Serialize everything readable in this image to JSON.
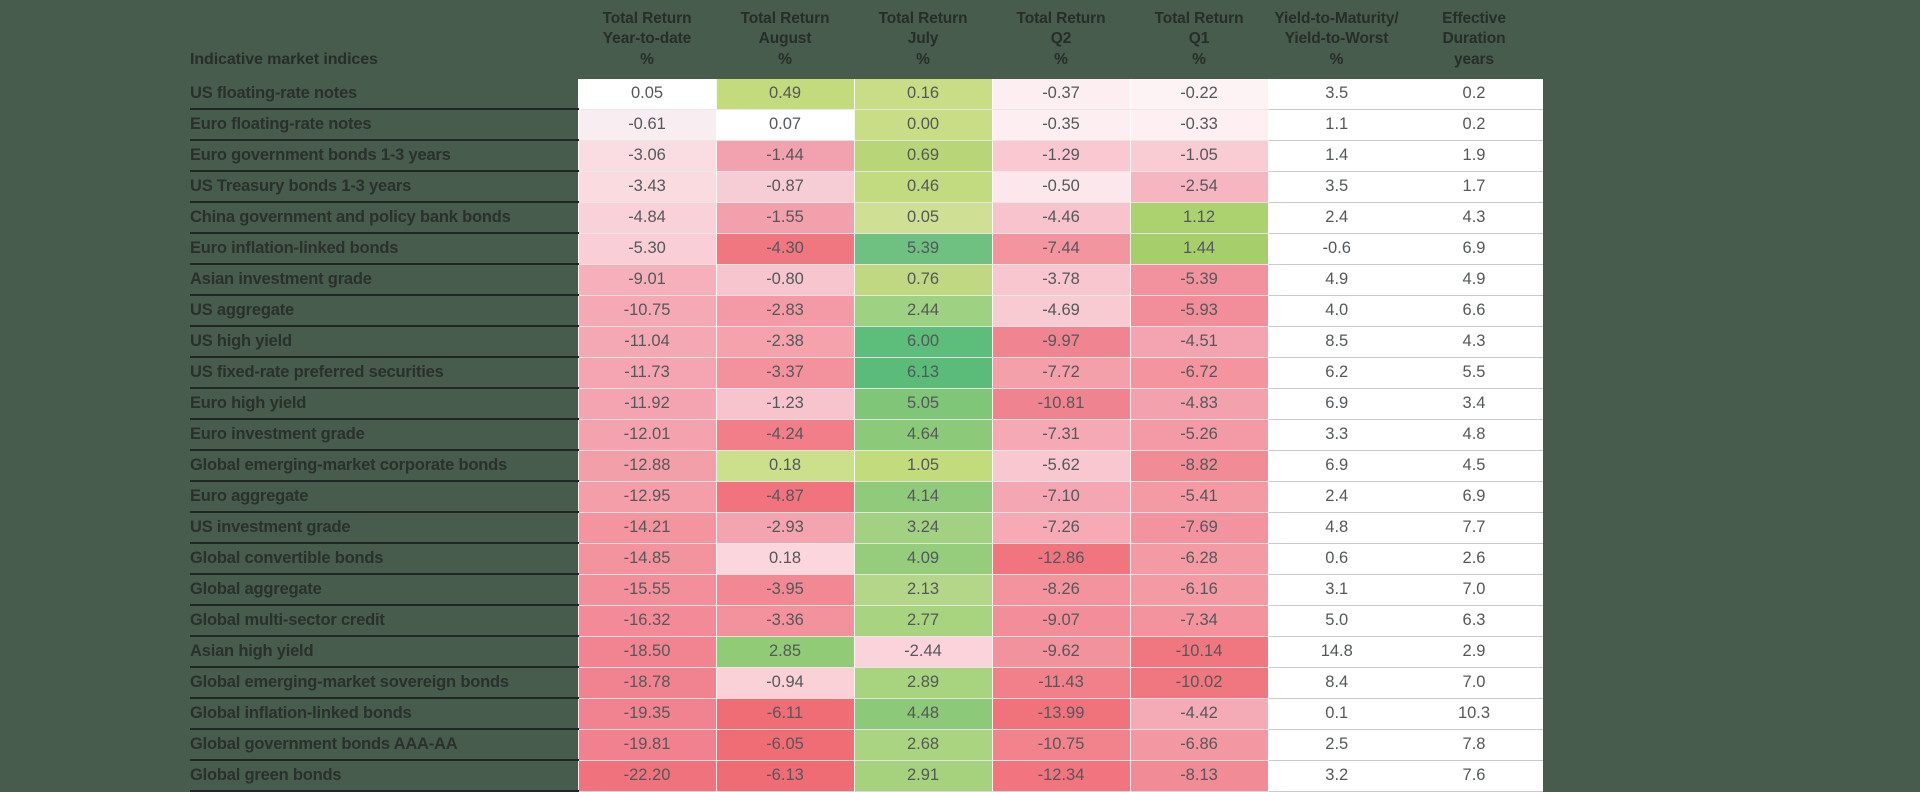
{
  "page": {
    "background_color": "#475c4d",
    "label_text_color": "#2a302c",
    "value_text_color": "#54585a",
    "row_underline_color": "#202623",
    "heat_red_max": "#f06c74",
    "heat_green_max": "#5abc78",
    "heat_neutral": "#ffffff"
  },
  "table": {
    "corner_header": "Indicative market indices",
    "column_headers": [
      "Total Return\nYear-to-date\n%",
      "Total Return\nAugust\n%",
      "Total Return\nJuly\n%",
      "Total Return\nQ2\n%",
      "Total Return\nQ1\n%",
      "Yield-to-Maturity/\nYield-to-Worst\n%",
      "Effective\nDuration\nyears"
    ]
  },
  "chart_data": {
    "type": "heatmap",
    "title": "Indicative market indices",
    "columns": [
      "Total Return Year-to-date %",
      "Total Return August %",
      "Total Return July %",
      "Total Return Q2 %",
      "Total Return Q1 %",
      "Yield-to-Maturity/Yield-to-Worst %",
      "Effective Duration years"
    ],
    "legend_position": "none",
    "grid": false,
    "rows": [
      {
        "label": "US floating-rate notes",
        "returns": [
          "0.05",
          "0.49",
          "0.16",
          "-0.37",
          "-0.22"
        ],
        "colors": [
          "#ffffff",
          "#c4db7d",
          "#c8dd85",
          "#fdeef1",
          "#fdf2f4"
        ],
        "ytm": "3.5",
        "duration": "0.2"
      },
      {
        "label": "Euro floating-rate notes",
        "returns": [
          "-0.61",
          "0.07",
          "0.00",
          "-0.35",
          "-0.33"
        ],
        "colors": [
          "#f8eef2",
          "#ffffff",
          "#c9dd86",
          "#fdeff1",
          "#fdeff2"
        ],
        "ytm": "1.1",
        "duration": "0.2"
      },
      {
        "label": "Euro government bonds 1-3 years",
        "returns": [
          "-3.06",
          "-1.44",
          "0.69",
          "-1.29",
          "-1.05"
        ],
        "colors": [
          "#fadde2",
          "#f2a2ae",
          "#b8d578",
          "#f9c8d1",
          "#f9cbd3"
        ],
        "ytm": "1.4",
        "duration": "1.9"
      },
      {
        "label": "US Treasury bonds 1-3 years",
        "returns": [
          "-3.43",
          "-0.87",
          "0.46",
          "-0.50",
          "-2.54"
        ],
        "colors": [
          "#fadbe0",
          "#f7cdd5",
          "#c2da80",
          "#fce8ec",
          "#f5b6c1"
        ],
        "ytm": "3.5",
        "duration": "1.7"
      },
      {
        "label": "China government and policy bank bonds",
        "returns": [
          "-4.84",
          "-1.55",
          "0.05",
          "-4.46",
          "1.12"
        ],
        "colors": [
          "#f9d2d9",
          "#f2a0ac",
          "#cfe094",
          "#f8c3cc",
          "#abd26f"
        ],
        "ytm": "2.4",
        "duration": "4.3"
      },
      {
        "label": "Euro inflation-linked bonds",
        "returns": [
          "-5.30",
          "-4.30",
          "5.39",
          "-7.44",
          "1.44"
        ],
        "colors": [
          "#f9ced6",
          "#f0767f",
          "#6ec180",
          "#f2959f",
          "#a6cf6b"
        ],
        "ytm": "-0.6",
        "duration": "6.9"
      },
      {
        "label": "Asian investment grade",
        "returns": [
          "-9.01",
          "-0.80",
          "0.76",
          "-3.78",
          "-5.39"
        ],
        "colors": [
          "#f5b0bb",
          "#f6c5ce",
          "#c0d882",
          "#f8c6cf",
          "#f2929e"
        ],
        "ytm": "4.9",
        "duration": "4.9"
      },
      {
        "label": "US aggregate",
        "returns": [
          "-10.75",
          "-2.83",
          "2.44",
          "-4.69",
          "-5.93"
        ],
        "colors": [
          "#f4a9b5",
          "#f49aa6",
          "#9ed182",
          "#f8cad2",
          "#f28e9a"
        ],
        "ytm": "4.0",
        "duration": "6.6"
      },
      {
        "label": "US high yield",
        "returns": [
          "-11.04",
          "-2.38",
          "6.00",
          "-9.97",
          "-4.51"
        ],
        "colors": [
          "#f4a8b4",
          "#f5a2ad",
          "#5dbd7a",
          "#f08490",
          "#f4a4b0"
        ],
        "ytm": "8.5",
        "duration": "4.3"
      },
      {
        "label": "US fixed-rate preferred securities",
        "returns": [
          "-11.73",
          "-3.37",
          "6.13",
          "-7.72",
          "-6.72"
        ],
        "colors": [
          "#f4a5b1",
          "#f3919d",
          "#5abc78",
          "#f3a0ab",
          "#f3949f"
        ],
        "ytm": "6.2",
        "duration": "5.5"
      },
      {
        "label": "Euro high yield",
        "returns": [
          "-11.92",
          "-1.23",
          "5.05",
          "-10.81",
          "-4.83"
        ],
        "colors": [
          "#f4a4b0",
          "#f7c4cd",
          "#7fc679",
          "#f08390",
          "#f3a1ad"
        ],
        "ytm": "6.9",
        "duration": "3.4"
      },
      {
        "label": "Euro investment grade",
        "returns": [
          "-12.01",
          "-4.24",
          "4.64",
          "-7.31",
          "-5.26"
        ],
        "colors": [
          "#f4a2ae",
          "#f17e88",
          "#8cca79",
          "#f4a9b4",
          "#f49aa6"
        ],
        "ytm": "3.3",
        "duration": "4.8"
      },
      {
        "label": "Global emerging-market corporate bonds",
        "returns": [
          "-12.88",
          "0.18",
          "1.05",
          "-5.62",
          "-8.82"
        ],
        "colors": [
          "#f39faa",
          "#cce08b",
          "#c2db7b",
          "#f9c7cf",
          "#f18b96"
        ],
        "ytm": "6.9",
        "duration": "4.5"
      },
      {
        "label": "Euro aggregate",
        "returns": [
          "-12.95",
          "-4.87",
          "4.14",
          "-7.10",
          "-5.41"
        ],
        "colors": [
          "#f39ea9",
          "#f0737d",
          "#90cb7b",
          "#f4a6b2",
          "#f49aa5"
        ],
        "ytm": "2.4",
        "duration": "6.9"
      },
      {
        "label": "US investment grade",
        "returns": [
          "-14.21",
          "-2.93",
          "3.24",
          "-7.26",
          "-7.69"
        ],
        "colors": [
          "#f3949f",
          "#f4a4af",
          "#a2d182",
          "#f5aab5",
          "#f2939f"
        ],
        "ytm": "4.8",
        "duration": "7.7"
      },
      {
        "label": "Global convertible bonds",
        "returns": [
          "-14.85",
          "0.18",
          "4.09",
          "-12.86",
          "-6.28"
        ],
        "colors": [
          "#f3939e",
          "#fbd6dc",
          "#95cd7d",
          "#f0757f",
          "#f39aa5"
        ],
        "ytm": "0.6",
        "duration": "2.6"
      },
      {
        "label": "Global aggregate",
        "returns": [
          "-15.55",
          "-3.95",
          "2.13",
          "-8.26",
          "-6.16"
        ],
        "colors": [
          "#f28f9b",
          "#f28893",
          "#b4d688",
          "#f2939e",
          "#f39aa5"
        ],
        "ytm": "3.1",
        "duration": "7.0"
      },
      {
        "label": "Global multi-sector credit",
        "returns": [
          "-16.32",
          "-3.36",
          "2.77",
          "-9.07",
          "-7.34"
        ],
        "colors": [
          "#f28b97",
          "#f3929d",
          "#a8d37f",
          "#f28e99",
          "#f2939e"
        ],
        "ytm": "5.0",
        "duration": "6.3"
      },
      {
        "label": "Asian high yield",
        "returns": [
          "-18.50",
          "2.85",
          "-2.44",
          "-9.62",
          "-10.14"
        ],
        "colors": [
          "#f18490",
          "#92cb76",
          "#fbd4db",
          "#f2929d",
          "#f0767f"
        ],
        "ytm": "14.8",
        "duration": "2.9"
      },
      {
        "label": "Global emerging-market sovereign bonds",
        "returns": [
          "-18.78",
          "-0.94",
          "2.89",
          "-11.43",
          "-10.02"
        ],
        "colors": [
          "#f18390",
          "#fbd1d8",
          "#a8d37f",
          "#f1808b",
          "#f0777f"
        ],
        "ytm": "8.4",
        "duration": "7.0"
      },
      {
        "label": "Global inflation-linked bonds",
        "returns": [
          "-19.35",
          "-6.11",
          "4.48",
          "-13.99",
          "-4.42"
        ],
        "colors": [
          "#f18290",
          "#f06d75",
          "#8cc978",
          "#f0737c",
          "#f5abb6"
        ],
        "ytm": "0.1",
        "duration": "10.3"
      },
      {
        "label": "Global government bonds AAA-AA",
        "returns": [
          "-19.81",
          "-6.05",
          "2.68",
          "-10.75",
          "-6.86"
        ],
        "colors": [
          "#f1818e",
          "#f06d75",
          "#abd480",
          "#f2838d",
          "#f398a2"
        ],
        "ytm": "2.5",
        "duration": "7.8"
      },
      {
        "label": "Global green bonds",
        "returns": [
          "-22.20",
          "-6.13",
          "2.91",
          "-12.34",
          "-8.13"
        ],
        "colors": [
          "#f0727c",
          "#f06c74",
          "#a6d27e",
          "#f1747e",
          "#f18b95"
        ],
        "ytm": "3.2",
        "duration": "7.6"
      }
    ]
  }
}
